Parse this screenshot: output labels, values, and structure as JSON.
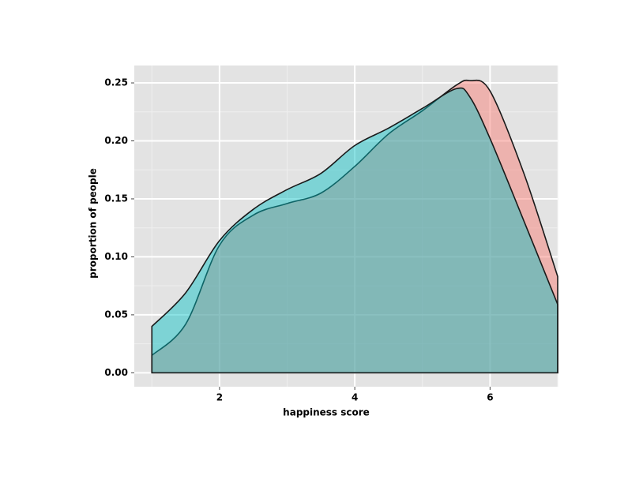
{
  "chart_data": {
    "type": "density",
    "xlabel": "happiness score",
    "ylabel": "proportion of people",
    "xlim": [
      0.74,
      7.0
    ],
    "ylim": [
      -0.012,
      0.265
    ],
    "xticks": [
      2,
      4,
      6
    ],
    "yticks": [
      {
        "value": 0,
        "label": "0.00"
      },
      {
        "value": 0.05,
        "label": "0.05"
      },
      {
        "value": 0.1,
        "label": "0.10"
      },
      {
        "value": 0.15,
        "label": "0.15"
      },
      {
        "value": 0.2,
        "label": "0.20"
      },
      {
        "value": 0.25,
        "label": "0.25"
      }
    ],
    "x_minor_grid": [
      1,
      3,
      5,
      7
    ],
    "y_minor_grid": [
      0.025,
      0.075,
      0.125,
      0.175,
      0.225
    ],
    "grid": true,
    "x": [
      1,
      1.5,
      2,
      2.5,
      3,
      3.5,
      4,
      4.5,
      5,
      5.5,
      5.7,
      6,
      6.5,
      7
    ],
    "series": [
      {
        "color": "#f8766d",
        "values": [
          0.015,
          0.042,
          0.11,
          0.136,
          0.146,
          0.155,
          0.178,
          0.206,
          0.226,
          0.248,
          0.252,
          0.243,
          0.172,
          0.083
        ]
      },
      {
        "color": "#00bfc4",
        "values": [
          0.04,
          0.069,
          0.114,
          0.141,
          0.158,
          0.172,
          0.196,
          0.211,
          0.228,
          0.245,
          0.238,
          0.202,
          0.131,
          0.059
        ]
      }
    ]
  }
}
